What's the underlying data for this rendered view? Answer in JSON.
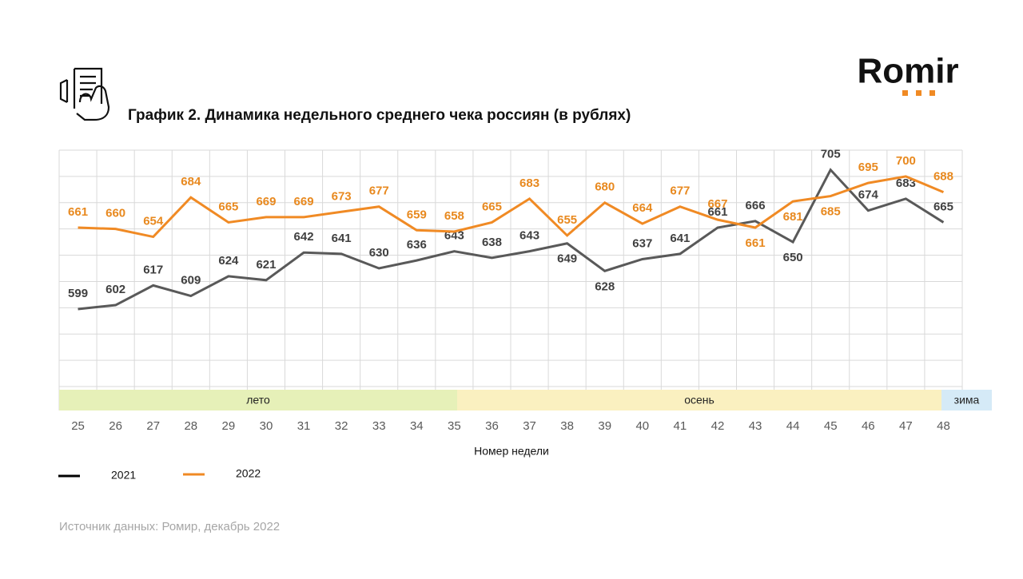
{
  "logo": "Romir",
  "source": "Источник данных: Ромир, декабрь 2022",
  "chart_data": {
    "type": "line",
    "title": "График 2. Динамика недельного среднего чека россиян (в рублях)",
    "x_label": "Номер недели",
    "categories": [
      "25",
      "26",
      "27",
      "28",
      "29",
      "30",
      "31",
      "32",
      "33",
      "34",
      "35",
      "36",
      "37",
      "38",
      "39",
      "40",
      "41",
      "42",
      "43",
      "44",
      "45",
      "46",
      "47",
      "48"
    ],
    "series": [
      {
        "name": "2021",
        "color": "#595959",
        "label_color": "#404040",
        "values": [
          599,
          602,
          617,
          609,
          624,
          621,
          642,
          641,
          630,
          636,
          643,
          638,
          643,
          649,
          628,
          637,
          641,
          661,
          666,
          650,
          705,
          674,
          683,
          665
        ]
      },
      {
        "name": "2022",
        "color": "#f08a24",
        "label_color": "#e8891f",
        "values": [
          661,
          660,
          654,
          684,
          665,
          669,
          669,
          673,
          677,
          659,
          658,
          665,
          683,
          655,
          680,
          664,
          677,
          667,
          661,
          681,
          685,
          695,
          700,
          688
        ]
      }
    ],
    "seasons": [
      "лето",
      "осень",
      "зима"
    ],
    "ylim": [
      540,
      720
    ],
    "yticks": [
      540,
      560,
      580,
      600,
      620,
      640,
      660,
      680,
      700,
      720
    ],
    "grid": true
  }
}
